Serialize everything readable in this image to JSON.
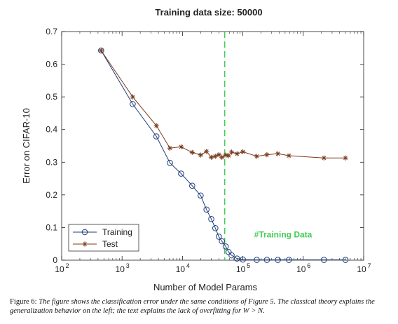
{
  "chart_data": {
    "type": "line",
    "title": "Training data size: 50000",
    "xlabel": "Number of Model Params",
    "ylabel": "Error on CIFAR-10",
    "xscale": "log",
    "xlim": [
      100,
      10000000
    ],
    "ylim": [
      0,
      0.7
    ],
    "x_ticks": [
      {
        "value": 100,
        "base": "10",
        "exp": "2"
      },
      {
        "value": 1000,
        "base": "10",
        "exp": "3"
      },
      {
        "value": 10000,
        "base": "10",
        "exp": "4"
      },
      {
        "value": 100000,
        "base": "10",
        "exp": "5"
      },
      {
        "value": 1000000,
        "base": "10",
        "exp": "6"
      },
      {
        "value": 10000000,
        "base": "10",
        "exp": "7"
      }
    ],
    "y_ticks": [
      "0",
      "0.1",
      "0.2",
      "0.3",
      "0.4",
      "0.5",
      "0.6",
      "0.7"
    ],
    "grid": false,
    "legend_position": "bottom-left",
    "series": [
      {
        "name": "Training",
        "color": "#1f3d7a",
        "marker": "circle",
        "x": [
          450,
          1500,
          3700,
          6200,
          9500,
          14500,
          20000,
          25000,
          30000,
          35000,
          40000,
          45000,
          52000,
          58000,
          65000,
          80000,
          100000,
          170000,
          250000,
          380000,
          580000,
          2200000,
          5000000
        ],
        "y": [
          0.642,
          0.478,
          0.379,
          0.298,
          0.265,
          0.228,
          0.198,
          0.155,
          0.126,
          0.098,
          0.072,
          0.058,
          0.042,
          0.025,
          0.015,
          0.005,
          0.002,
          0.001,
          0.001,
          0.001,
          0.001,
          0.001,
          0.001
        ]
      },
      {
        "name": "Test",
        "color": "#7a3b1f",
        "marker": "star",
        "x": [
          450,
          1500,
          3700,
          6200,
          9500,
          14500,
          20000,
          25000,
          30000,
          35000,
          40000,
          45000,
          52000,
          58000,
          65000,
          80000,
          100000,
          170000,
          250000,
          380000,
          580000,
          2200000,
          5000000
        ],
        "y": [
          0.642,
          0.5,
          0.412,
          0.343,
          0.347,
          0.33,
          0.322,
          0.333,
          0.315,
          0.318,
          0.323,
          0.315,
          0.322,
          0.32,
          0.331,
          0.326,
          0.332,
          0.318,
          0.323,
          0.326,
          0.32,
          0.313,
          0.313
        ]
      }
    ],
    "annotation": {
      "label": "#Training Data",
      "x": 50000,
      "color": "#44cc55"
    }
  },
  "caption": {
    "lead": "Figure 6:",
    "body": "The figure shows the classification error under the same conditions of Figure 5. The classical theory explains the generalization behavior on the left; the text explains the lack of overfitting for W > N."
  }
}
